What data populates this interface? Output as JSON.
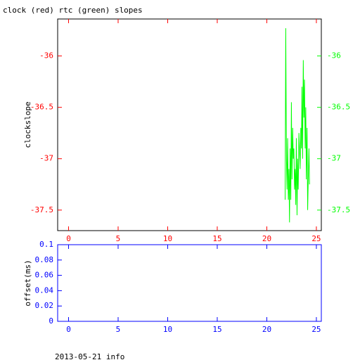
{
  "chart_data": [
    {
      "type": "line",
      "title": "clock (red) rtc (green) slopes",
      "y_label": "clockslope",
      "xlim": [
        -1.1,
        25.5
      ],
      "xticks": [
        0,
        5,
        10,
        15,
        20,
        25
      ],
      "ylim": [
        -37.7,
        -35.64
      ],
      "yticks": [
        -36,
        -36.5,
        -37,
        -37.5
      ],
      "y2lim": [
        -37.7,
        -35.64
      ],
      "y2ticks": [
        -36,
        -36.5,
        -37,
        -37.5
      ],
      "x_color": "#ff0000",
      "y_color": "#ff0000",
      "y2_color": "#00ff00",
      "frame_color": "#000000",
      "series": [
        {
          "name": "rtc",
          "color": "#00ff00",
          "axis": "y2",
          "x": [
            21.85,
            21.91,
            21.98,
            22.04,
            22.1,
            22.17,
            22.23,
            22.29,
            22.35,
            22.42,
            22.48,
            22.54,
            22.61,
            22.67,
            22.73,
            22.8,
            22.86,
            22.92,
            22.98,
            23.05,
            23.11,
            23.17,
            23.24,
            23.3,
            23.36,
            23.43,
            23.49,
            23.55,
            23.61,
            23.68,
            23.74,
            23.8,
            23.87,
            23.93,
            23.99,
            24.06,
            24.12,
            24.18,
            24.25,
            24.31
          ],
          "values": [
            -37.4,
            -35.73,
            -37.0,
            -37.3,
            -36.8,
            -37.4,
            -37.1,
            -37.62,
            -36.9,
            -37.4,
            -36.45,
            -37.2,
            -36.7,
            -37.0,
            -36.9,
            -37.3,
            -37.1,
            -37.45,
            -36.8,
            -37.55,
            -37.0,
            -37.3,
            -36.75,
            -36.9,
            -37.1,
            -36.7,
            -36.9,
            -36.3,
            -37.0,
            -36.04,
            -36.6,
            -36.23,
            -36.9,
            -36.5,
            -37.2,
            -36.7,
            -37.5,
            -37.2,
            -36.9,
            -37.25
          ]
        }
      ]
    },
    {
      "type": "line",
      "y_label": "offset(ms)",
      "xlim": [
        -1.1,
        25.5
      ],
      "xticks": [
        0,
        5,
        10,
        15,
        20,
        25
      ],
      "ylim": [
        0,
        0.1
      ],
      "yticks": [
        0,
        0.02,
        0.04,
        0.06,
        0.08,
        0.1
      ],
      "x_color": "#0000ff",
      "y_color": "#0000ff",
      "frame_color": "#0000ff",
      "series": []
    }
  ],
  "footer": "2013-05-21 info"
}
